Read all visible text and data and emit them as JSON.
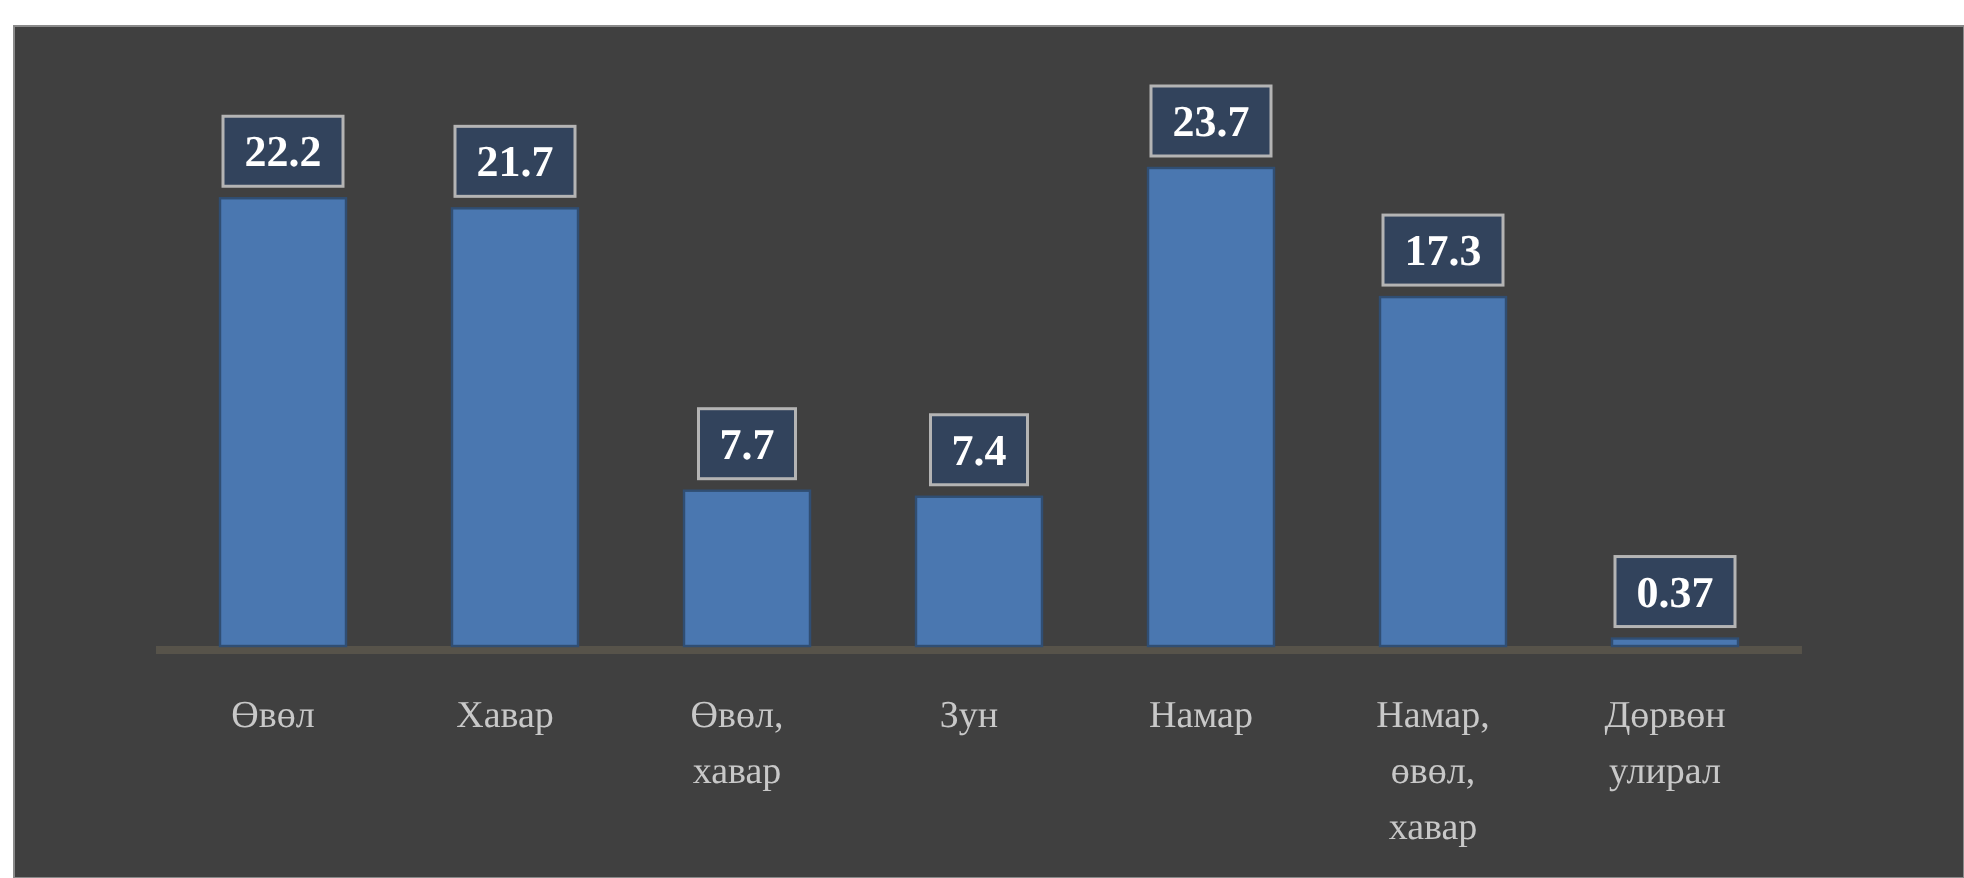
{
  "chart_data": {
    "type": "bar",
    "categories": [
      "Өвөл",
      "Хавар",
      "Өвөл, хавар",
      "Зун",
      "Намар",
      "Намар, өвөл, хавар",
      "Дөрвөн улирал"
    ],
    "values": [
      22.2,
      21.7,
      7.7,
      7.4,
      23.7,
      17.3,
      0.37
    ],
    "color": "#4a77b0",
    "data_labels": true
  }
}
